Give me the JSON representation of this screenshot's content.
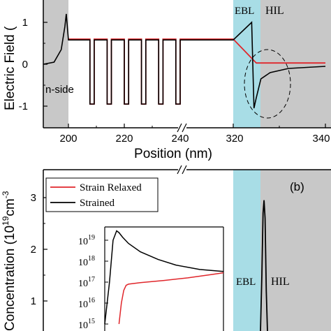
{
  "figure": {
    "panel_b_label": "(b)"
  },
  "colors": {
    "strained": "#000000",
    "strain_relaxed": "#e0262b",
    "ebl_fill": "#a8dde6",
    "hil_fill": "#c8c8c8",
    "nside_fill": "#c8c8c8"
  },
  "chart_data": [
    {
      "panel": "a",
      "type": "line",
      "ylabel": "Electric Field (",
      "xlabel": "Position (nm)",
      "x_tick_labels": [
        "200",
        "220",
        "240",
        "320",
        "340"
      ],
      "y_tick_labels": [
        "1",
        "0",
        "-1"
      ],
      "ylim": [
        -1.45,
        1.5
      ],
      "axis_break": "//",
      "regions": [
        {
          "name": "n-side",
          "label": "n-side"
        },
        {
          "name": "EBL",
          "label": "EBL"
        },
        {
          "name": "HIL",
          "label": "HIL"
        }
      ],
      "series": [
        {
          "name": "Strained",
          "x": [
            193,
            196,
            198,
            199,
            199.4,
            200,
            200,
            210,
            210,
            212,
            212,
            218,
            218,
            220,
            220,
            226,
            226,
            228,
            228,
            234,
            234,
            236,
            236,
            242,
            242,
            244,
            244,
            250,
            250,
            252,
            252,
            300,
            310,
            320,
            324,
            324.5,
            325,
            326,
            328,
            332,
            340
          ],
          "y": [
            0,
            0.05,
            0.35,
            0.9,
            1.2,
            0.58,
            0.58,
            0.58,
            -0.95,
            -0.95,
            0.58,
            0.58,
            -0.95,
            -0.95,
            0.58,
            0.58,
            -0.95,
            -0.95,
            0.58,
            0.58,
            -0.95,
            -0.95,
            0.58,
            0.58,
            -0.95,
            -0.95,
            0.58,
            0.58,
            -0.95,
            -0.95,
            0.58,
            0.58,
            0.58,
            0.58,
            1.0,
            -1.05,
            -0.8,
            -0.35,
            -0.2,
            -0.1,
            -0.05
          ]
        },
        {
          "name": "Strain Relaxed",
          "x": [
            200,
            210,
            210,
            212,
            212,
            218,
            218,
            220,
            220,
            226,
            226,
            228,
            228,
            234,
            234,
            236,
            236,
            242,
            242,
            244,
            244,
            250,
            250,
            252,
            252,
            300,
            310,
            320,
            325,
            340
          ],
          "y": [
            0.6,
            0.6,
            -0.95,
            -0.95,
            0.6,
            0.6,
            -0.95,
            -0.95,
            0.6,
            0.6,
            -0.95,
            -0.95,
            0.6,
            0.6,
            -0.95,
            -0.95,
            0.6,
            0.6,
            -0.95,
            -0.95,
            0.6,
            0.6,
            -0.95,
            -0.95,
            0.6,
            0.6,
            0.6,
            0.6,
            0.03,
            0.03
          ]
        }
      ]
    },
    {
      "panel": "b",
      "type": "line",
      "ylabel": "Concentration (10",
      "ylabel_sup1": "19",
      "ylabel_mid": "cm",
      "ylabel_sup2": "-3",
      "y_tick_labels": [
        "3",
        "2",
        "1"
      ],
      "ylim": [
        0,
        3.4
      ],
      "axis_break": "//",
      "legend": {
        "placement": "top-left",
        "entries": [
          "Strain Relaxed",
          "Strained"
        ]
      },
      "regions": [
        {
          "name": "EBL",
          "label": "EBL"
        },
        {
          "name": "HIL",
          "label": "HIL"
        }
      ],
      "series": [
        {
          "name": "Strained",
          "x": [
            326.5,
            327.2,
            327.8,
            328.3,
            328.8,
            329.4,
            330.0
          ],
          "y": [
            0.0,
            1.5,
            2.7,
            2.95,
            2.6,
            1.2,
            0.0
          ]
        }
      ],
      "inset": {
        "type": "line",
        "yscale": "log",
        "y_tick_labels": [
          "10",
          "10",
          "10",
          "10",
          "10"
        ],
        "y_tick_exponents": [
          "19",
          "18",
          "17",
          "16",
          "15"
        ],
        "ylim": [
          1000000000000000.0,
          3e+19
        ],
        "series": [
          {
            "name": "Strained",
            "x": [
              0.0,
              0.04,
              0.07,
              0.1,
              0.12,
              0.15,
              0.2,
              0.3,
              0.45,
              0.6,
              0.8,
              1.0
            ],
            "y": [
              1000000000000000.0,
              1e+17,
              1e+19,
              2.8e+19,
              2.3e+19,
              1.4e+19,
              7e+18,
              2.8e+18,
              1.2e+18,
              6.5e+17,
              4e+17,
              3.2e+17
            ]
          },
          {
            "name": "Strain Relaxed",
            "x": [
              0.12,
              0.14,
              0.16,
              0.18,
              0.2,
              0.3,
              0.5,
              0.7,
              0.9,
              1.0
            ],
            "y": [
              1000000000000000.0,
              1e+16,
              4e+16,
              7e+16,
              8e+16,
              9.5e+16,
              1.2e+17,
              1.6e+17,
              2.3e+17,
              2.8e+17
            ]
          }
        ],
        "regions": [
          {
            "name": "EBL",
            "label": "EBL"
          },
          {
            "name": "HIL",
            "label": "HIL"
          }
        ]
      }
    }
  ]
}
